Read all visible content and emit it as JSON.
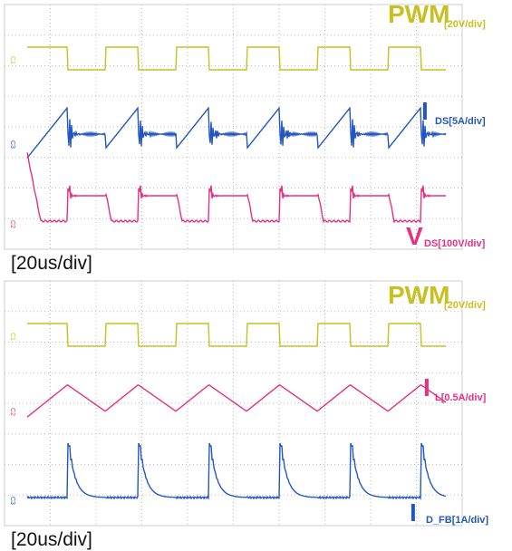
{
  "panels": [
    {
      "channels": [
        {
          "marker": "C1",
          "name": "PWM",
          "scale": "[20V/div]"
        },
        {
          "marker": "C3",
          "name": "I",
          "scale": "DS[5A/div]"
        },
        {
          "marker": "C2",
          "name": "V",
          "scale": "DS[100V/div]"
        }
      ],
      "timebase": "[20us/div]"
    },
    {
      "channels": [
        {
          "marker": "C1",
          "name": "PWM",
          "scale": "[20V/div]"
        },
        {
          "marker": "C2",
          "name": "I",
          "scale": "L[0.5A/div]"
        },
        {
          "marker": "C3",
          "name": "I",
          "scale": "D_FB[1A/div]"
        }
      ],
      "timebase": "[20us/div]"
    }
  ]
}
